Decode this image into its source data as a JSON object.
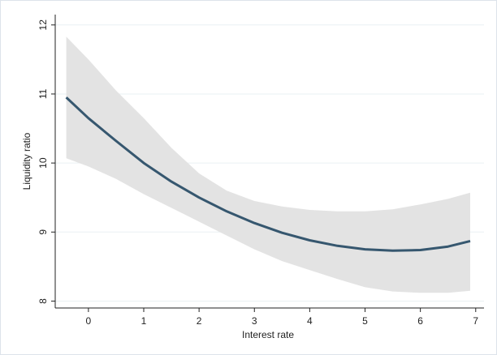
{
  "chart_data": {
    "type": "line",
    "x_label": "Interest rate",
    "y_label": "Liquidity ratio",
    "x": [
      -0.4,
      0,
      0.5,
      1,
      1.5,
      2,
      2.5,
      3,
      3.5,
      4,
      4.5,
      5,
      5.5,
      6,
      6.5,
      6.9
    ],
    "series": [
      {
        "color": "#36576f",
        "values": [
          10.95,
          10.65,
          10.32,
          10.0,
          9.73,
          9.5,
          9.3,
          9.13,
          8.99,
          8.88,
          8.8,
          8.75,
          8.73,
          8.74,
          8.79,
          8.87
        ]
      }
    ],
    "band": {
      "color": "#e3e3e3",
      "upper": [
        11.83,
        11.5,
        11.05,
        10.65,
        10.22,
        9.85,
        9.6,
        9.45,
        9.37,
        9.32,
        9.3,
        9.3,
        9.33,
        9.4,
        9.48,
        9.57
      ],
      "lower": [
        10.07,
        9.95,
        9.77,
        9.55,
        9.35,
        9.15,
        8.95,
        8.75,
        8.58,
        8.45,
        8.32,
        8.2,
        8.14,
        8.12,
        8.12,
        8.15
      ]
    },
    "xlim": [
      -0.6,
      7.15
    ],
    "ylim": [
      7.9,
      12.15
    ],
    "xticks": [
      0,
      1,
      2,
      3,
      4,
      5,
      6,
      7
    ],
    "yticks": [
      8,
      9,
      10,
      11,
      12
    ],
    "grid": true
  }
}
